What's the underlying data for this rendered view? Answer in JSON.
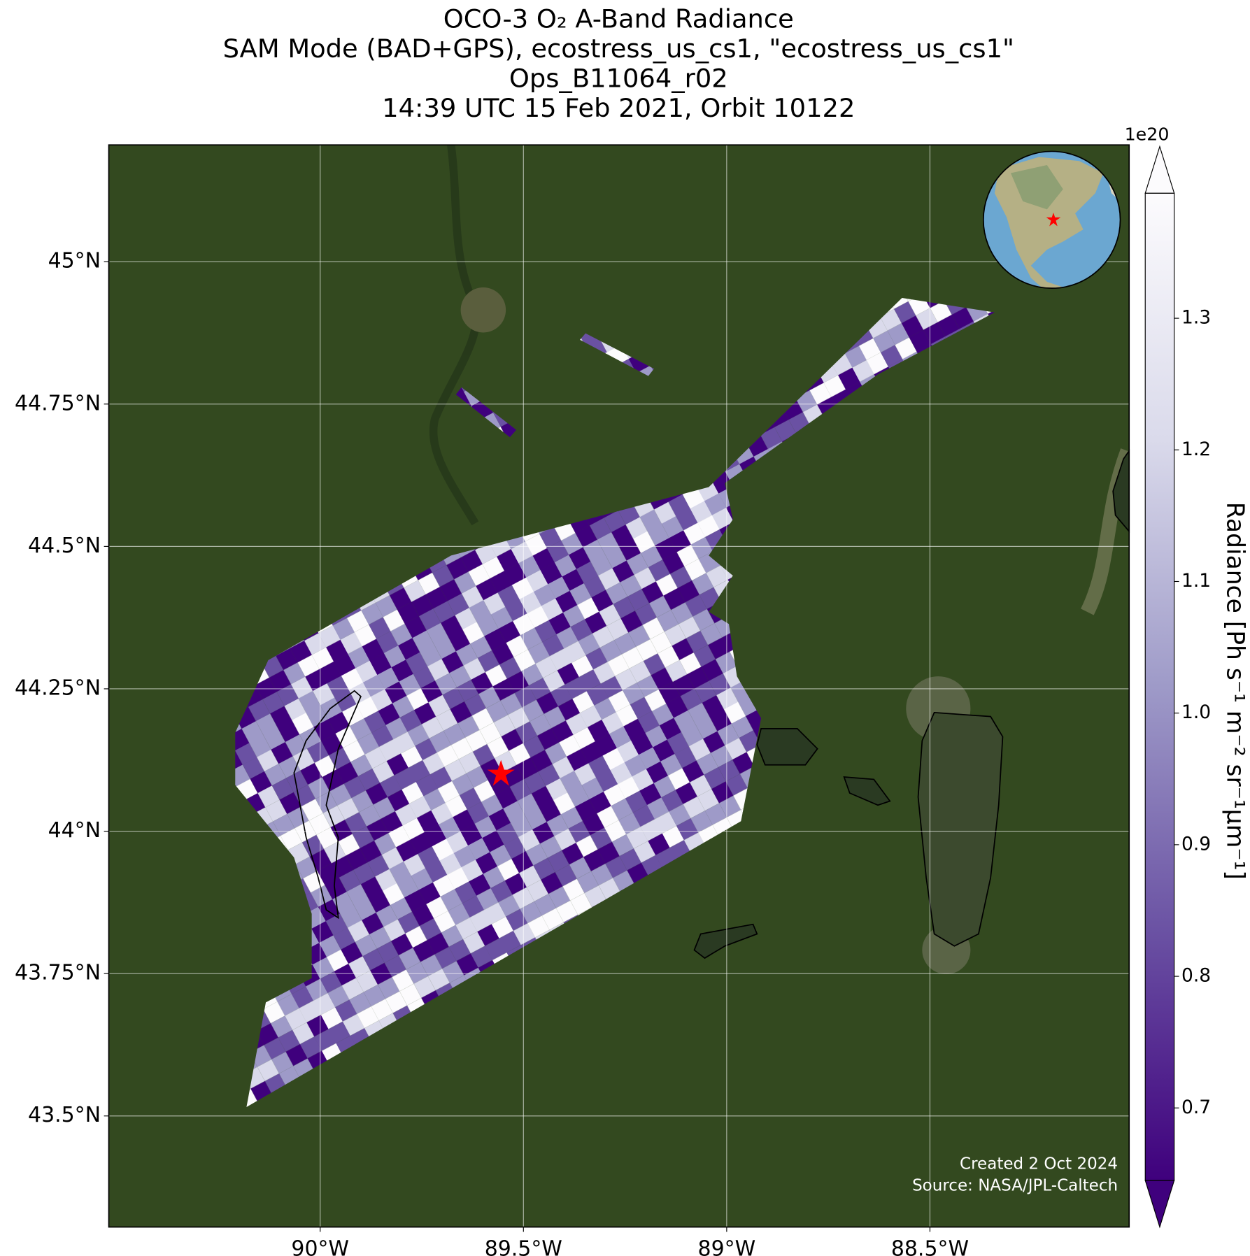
{
  "title": [
    "OCO-3 O₂ A-Band Radiance",
    "SAM Mode (BAD+GPS), ecostress_us_cs1, \"ecostress_us_cs1\"",
    "Ops_B11064_r02",
    "14:39 UTC 15 Feb 2021, Orbit 10122"
  ],
  "map": {
    "xlim": [
      -90.52,
      -88.01
    ],
    "ylim": [
      43.305,
      45.205
    ],
    "xticks": [
      {
        "value": -90,
        "label": "90°W"
      },
      {
        "value": -89.5,
        "label": "89.5°W"
      },
      {
        "value": -89,
        "label": "89°W"
      },
      {
        "value": -88.5,
        "label": "88.5°W"
      }
    ],
    "yticks": [
      {
        "value": 43.5,
        "label": "43.5°N"
      },
      {
        "value": 43.75,
        "label": "43.75°N"
      },
      {
        "value": 44,
        "label": "44°N"
      },
      {
        "value": 44.25,
        "label": "44.25°N"
      },
      {
        "value": 44.5,
        "label": "44.5°N"
      },
      {
        "value": 44.75,
        "label": "44.75°N"
      },
      {
        "value": 45,
        "label": "45°N"
      }
    ],
    "grid": true
  },
  "colorbar": {
    "label": "Radiance [Ph s⁻¹ m⁻² sr⁻¹µm⁻¹]",
    "exponent": "1e20",
    "clim": [
      0.645,
      1.395
    ],
    "ticks": [
      0.7,
      0.8,
      0.9,
      {
        "value": 1,
        "label": "1.0"
      },
      1.1,
      1.2,
      1.3
    ],
    "colors": [
      "#3f007d",
      "#6a51a3",
      "#9e9ac8",
      "#dadaeb",
      "#fcfbfd"
    ]
  },
  "footer": [
    "Created 2 Oct 2024",
    "Source: NASA/JPL-Caltech"
  ]
}
